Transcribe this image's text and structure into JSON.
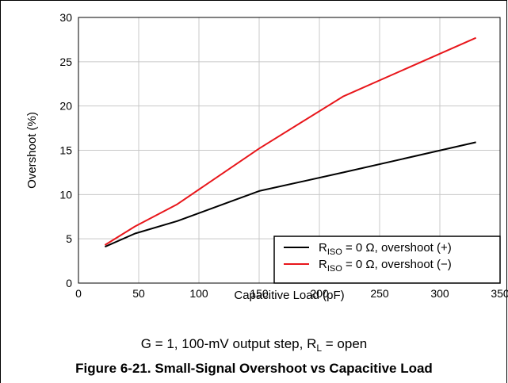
{
  "chart_data": {
    "type": "line",
    "xlabel": "Capacitive Load (pF)",
    "ylabel": "Overshoot (%)",
    "xlim": [
      0,
      350
    ],
    "ylim": [
      0,
      30
    ],
    "x_ticks": [
      0,
      50,
      100,
      150,
      200,
      250,
      300,
      350
    ],
    "y_ticks": [
      0,
      5,
      10,
      15,
      20,
      25,
      30
    ],
    "grid": true,
    "legend_position": "bottom-right",
    "series": [
      {
        "name_main": "R",
        "name_sub": "ISO",
        "name_rest": " = 0 Ω, overshoot (+)",
        "color": "#000000",
        "x": [
          22,
          47,
          82,
          150,
          220,
          330
        ],
        "y": [
          4.1,
          5.6,
          7.0,
          10.4,
          12.5,
          15.9
        ]
      },
      {
        "name_main": "R",
        "name_sub": "ISO",
        "name_rest": " = 0 Ω, overshoot (−)",
        "color": "#e8161b",
        "x": [
          22,
          47,
          82,
          150,
          220,
          330
        ],
        "y": [
          4.3,
          6.4,
          8.9,
          15.2,
          21.1,
          27.7
        ]
      }
    ]
  },
  "condition": {
    "main": "G = 1, 100-mV output step, R",
    "sub": "L",
    "rest": " = open"
  },
  "caption": "Figure 6-21. Small-Signal Overshoot vs Capacitive Load"
}
